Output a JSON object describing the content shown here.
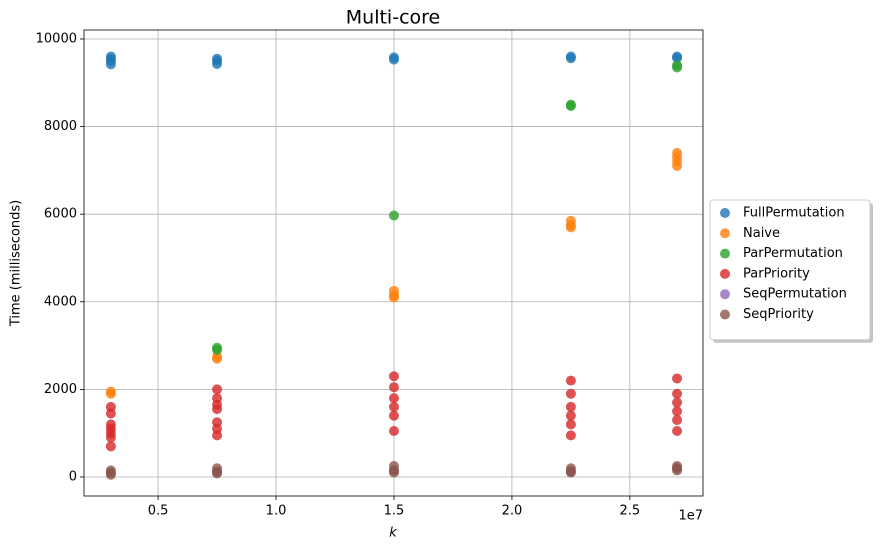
{
  "chart_data": {
    "type": "scatter",
    "title": "Multi-core",
    "x_label": "k",
    "y_label": "Time (milliseconds)",
    "x_offset_label": "1e7",
    "xlim": [
      1860000,
      28100000
    ],
    "ylim": [
      -434,
      10205
    ],
    "xticks": [
      {
        "value": 5000000,
        "label": "0.5"
      },
      {
        "value": 10000000,
        "label": "1.0"
      },
      {
        "value": 15000000,
        "label": "1.5"
      },
      {
        "value": 20000000,
        "label": "2.0"
      },
      {
        "value": 25000000,
        "label": "2.5"
      }
    ],
    "yticks": [
      0,
      2000,
      4000,
      6000,
      8000,
      10000
    ],
    "grid": true,
    "legend": "outside right",
    "series": [
      {
        "name": "FullPermutation",
        "color": "#1f77b4",
        "x": [
          3000000,
          3000000,
          3000000,
          3000000,
          7500000,
          7500000,
          7500000,
          15000000,
          15000000,
          22500000,
          22500000,
          27000000,
          27000000
        ],
        "values": [
          9600,
          9550,
          9500,
          9420,
          9550,
          9500,
          9430,
          9580,
          9530,
          9600,
          9560,
          9600,
          9570
        ]
      },
      {
        "name": "Naive",
        "color": "#ff7f0e",
        "x": [
          3000000,
          3000000,
          7500000,
          7500000,
          15000000,
          15000000,
          15000000,
          22500000,
          22500000,
          22500000,
          27000000,
          27000000,
          27000000,
          27000000
        ],
        "values": [
          1950,
          1900,
          2750,
          2700,
          4250,
          4150,
          4100,
          5850,
          5750,
          5700,
          7400,
          7300,
          7200,
          7100
        ]
      },
      {
        "name": "ParPermutation",
        "color": "#2ca02c",
        "x": [
          7500000,
          7500000,
          15000000,
          22500000,
          22500000,
          27000000,
          27000000
        ],
        "values": [
          2950,
          2900,
          5970,
          8500,
          8470,
          9400,
          9350
        ]
      },
      {
        "name": "ParPriority",
        "color": "#d62728",
        "x": [
          3000000,
          3000000,
          3000000,
          3000000,
          3000000,
          3000000,
          3000000,
          7500000,
          7500000,
          7500000,
          7500000,
          7500000,
          7500000,
          7500000,
          15000000,
          15000000,
          15000000,
          15000000,
          15000000,
          15000000,
          22500000,
          22500000,
          22500000,
          22500000,
          22500000,
          22500000,
          27000000,
          27000000,
          27000000,
          27000000,
          27000000,
          27000000
        ],
        "values": [
          1600,
          1450,
          1200,
          1100,
          1000,
          900,
          700,
          2000,
          1800,
          1650,
          1550,
          1250,
          1100,
          950,
          2300,
          2050,
          1800,
          1600,
          1400,
          1050,
          2200,
          1900,
          1600,
          1400,
          1200,
          950,
          2250,
          1900,
          1700,
          1500,
          1300,
          1050
        ]
      },
      {
        "name": "SeqPermutation",
        "color": "#9467bd",
        "x": [
          3000000,
          7500000,
          15000000,
          22500000,
          27000000
        ],
        "values": [
          100,
          120,
          150,
          130,
          200
        ]
      },
      {
        "name": "SeqPriority",
        "color": "#8c564b",
        "x": [
          3000000,
          3000000,
          3000000,
          7500000,
          7500000,
          7500000,
          15000000,
          15000000,
          15000000,
          22500000,
          22500000,
          22500000,
          27000000,
          27000000,
          27000000
        ],
        "values": [
          150,
          100,
          50,
          200,
          120,
          80,
          250,
          150,
          100,
          200,
          130,
          100,
          250,
          200,
          150
        ]
      }
    ]
  }
}
